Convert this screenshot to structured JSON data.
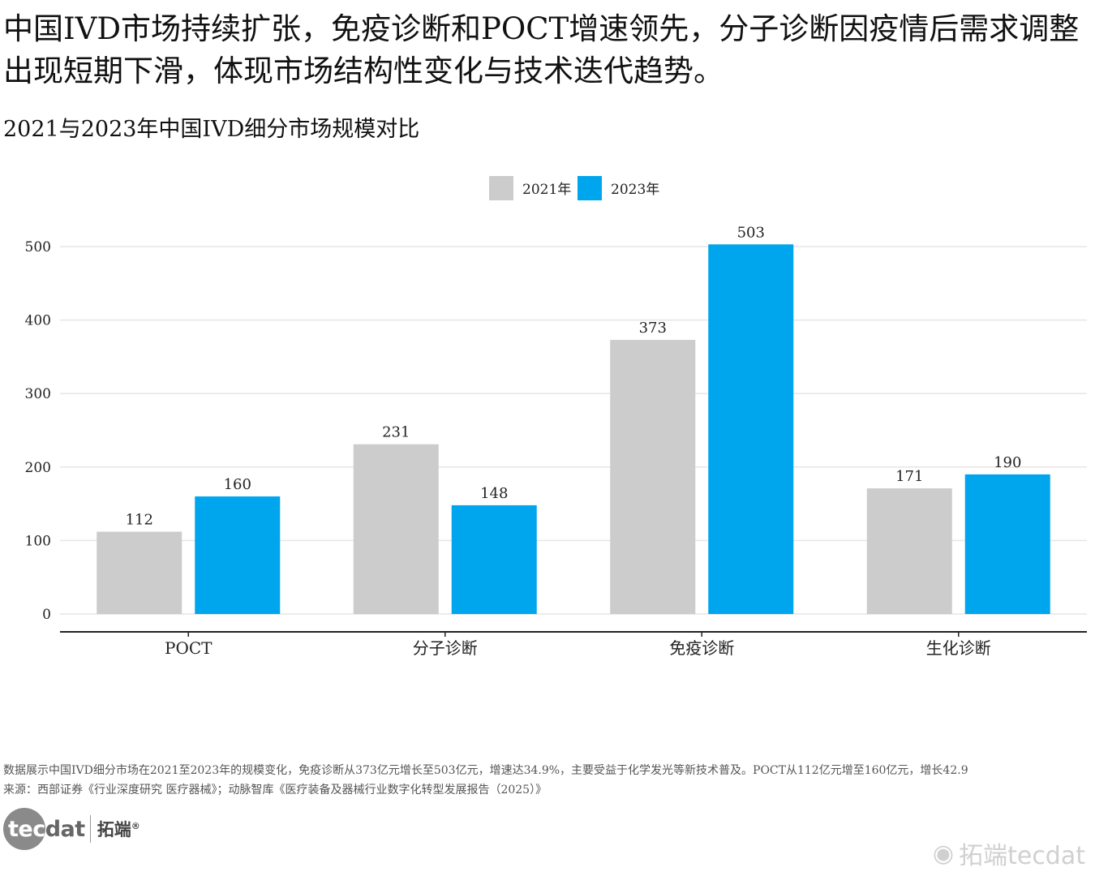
{
  "headline": "中国IVD市场持续扩张，免疫诊断和POCT增速领先，分子诊断因疫情后需求调整出现短期下滑，体现市场结构性变化与技术迭代趋势。",
  "footnote": {
    "line1": "数据展示中国IVD细分市场在2021至2023年的规模变化，免疫诊断从373亿元增长至503亿元，增速达34.9%，主要受益于化学发光等新技术普及。POCT从112亿元增至160亿元，增长42.9",
    "line2": "来源：西部证券《行业深度研究 医疗器械》；动脉智库《医疗装备及器械行业数字化转型发展报告（2025）》"
  },
  "brand": {
    "logo_tec": "tec",
    "logo_dat": "dat",
    "name_cn": "拓端",
    "reg": "®"
  },
  "watermark": {
    "icon": "weibo-icon",
    "text": "拓端tecdat"
  },
  "colors": {
    "series_2021": "#cccccc",
    "series_2023": "#00a6ed",
    "grid": "#e6e6e6",
    "axis": "#222222"
  },
  "chart_data": {
    "type": "bar",
    "title": "2021与2023年中国IVD细分市场规模对比",
    "xlabel": "",
    "ylabel": "",
    "categories": [
      "POCT",
      "分子诊断",
      "免疫诊断",
      "生化诊断"
    ],
    "series": [
      {
        "name": "2021年",
        "values": [
          112,
          231,
          373,
          171
        ]
      },
      {
        "name": "2023年",
        "values": [
          160,
          148,
          503,
          190
        ]
      }
    ],
    "yticks": [
      0,
      100,
      200,
      300,
      400,
      500
    ],
    "ylim": [
      0,
      520
    ],
    "grid": true,
    "legend_position": "top-center",
    "data_labels": true
  }
}
